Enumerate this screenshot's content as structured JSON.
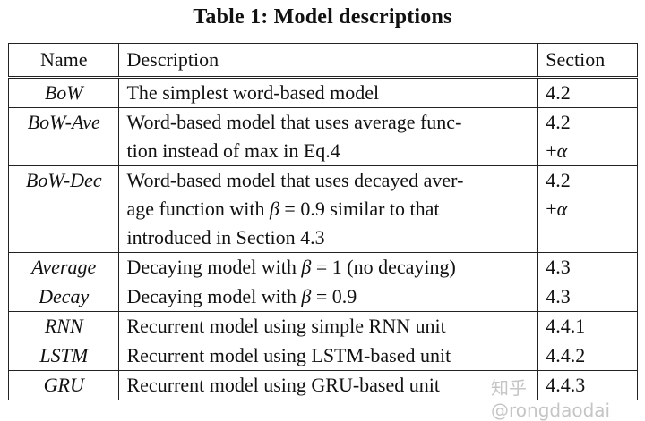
{
  "title": "Table 1: Model descriptions",
  "headers": {
    "name": "Name",
    "description": "Description",
    "section": "Section"
  },
  "rows": [
    {
      "name": "BoW",
      "description_lines": [
        "The simplest word-based model"
      ],
      "section_lines": [
        "4.2"
      ]
    },
    {
      "name": "BoW-Ave",
      "description_lines": [
        "Word-based model that uses average func-",
        "tion instead of max in Eq.4"
      ],
      "section_lines": [
        "4.2",
        "+α"
      ]
    },
    {
      "name": "BoW-Dec",
      "description_lines": [
        "Word-based model that uses decayed aver-",
        "age function with β = 0.9 similar to that",
        "introduced in Section 4.3"
      ],
      "section_lines": [
        "4.2",
        "+α"
      ]
    },
    {
      "name": "Average",
      "description_lines": [
        "Decaying model with β = 1 (no decaying)"
      ],
      "section_lines": [
        "4.3"
      ]
    },
    {
      "name": "Decay",
      "description_lines": [
        "Decaying model with β = 0.9"
      ],
      "section_lines": [
        "4.3"
      ]
    },
    {
      "name": "RNN",
      "description_lines": [
        "Recurrent model using simple RNN unit"
      ],
      "section_lines": [
        "4.4.1"
      ]
    },
    {
      "name": "LSTM",
      "description_lines": [
        "Recurrent model using LSTM-based unit"
      ],
      "section_lines": [
        "4.4.2"
      ]
    },
    {
      "name": "GRU",
      "description_lines": [
        "Recurrent model using GRU-based unit"
      ],
      "section_lines": [
        "4.4.3"
      ]
    }
  ],
  "watermark": "知乎 @rongdaodai"
}
